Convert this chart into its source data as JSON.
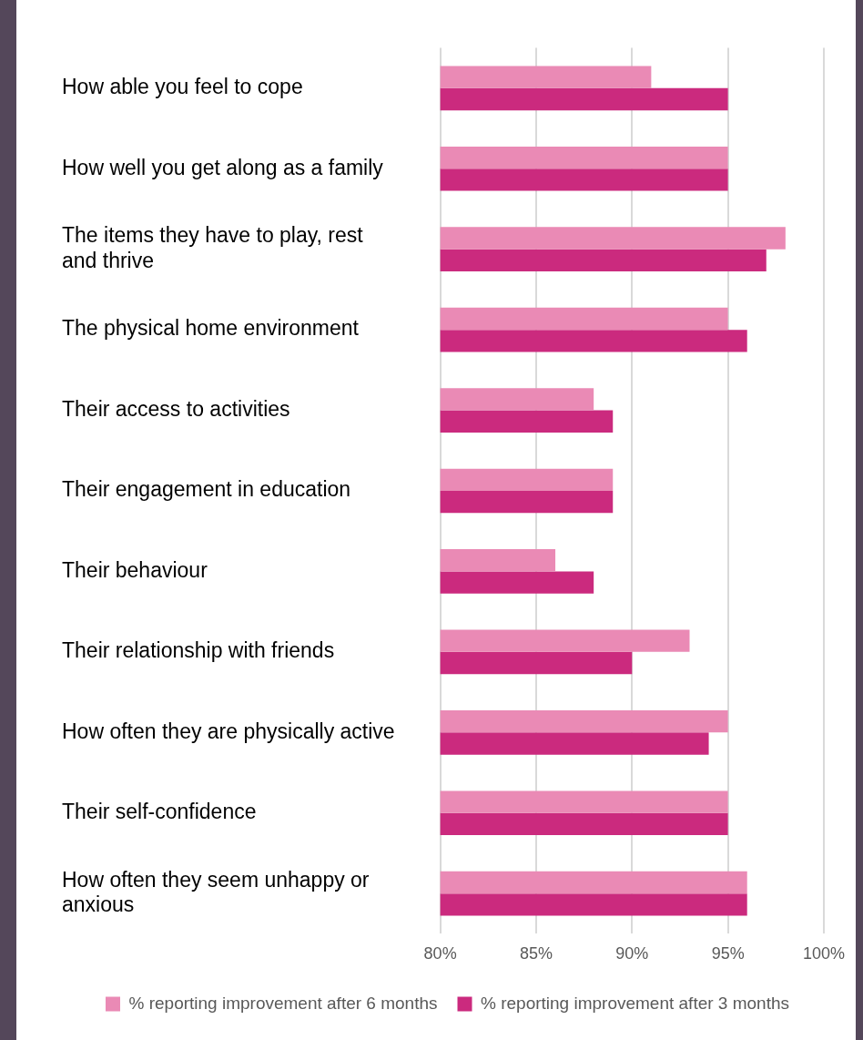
{
  "chart_data": {
    "type": "bar",
    "orientation": "horizontal",
    "categories": [
      "How able you feel to cope",
      "How well you get along as a family",
      "The items they have to play, rest and thrive",
      "The physical home environment",
      "Their access to activities",
      "Their engagement in education",
      "Their behaviour",
      "Their relationship with friends",
      "How often they are physically active",
      "Their self-confidence",
      "How often they seem unhappy or anxious"
    ],
    "series": [
      {
        "name": "% reporting improvement after 6 months",
        "color": "#ea8ab5",
        "values": [
          91,
          95,
          98,
          95,
          88,
          89,
          86,
          93,
          95,
          95,
          96
        ]
      },
      {
        "name": "% reporting improvement after 3 months",
        "color": "#cb2a7e",
        "values": [
          95,
          95,
          97,
          96,
          89,
          89,
          88,
          90,
          94,
          95,
          96
        ]
      }
    ],
    "xlim": [
      80,
      100
    ],
    "xticks": [
      {
        "value": 80,
        "label": "80%"
      },
      {
        "value": 85,
        "label": "85%"
      },
      {
        "value": 90,
        "label": "90%"
      },
      {
        "value": 95,
        "label": "95%"
      },
      {
        "value": 100,
        "label": "100%"
      }
    ],
    "grid": "x",
    "legend": "bottom"
  }
}
